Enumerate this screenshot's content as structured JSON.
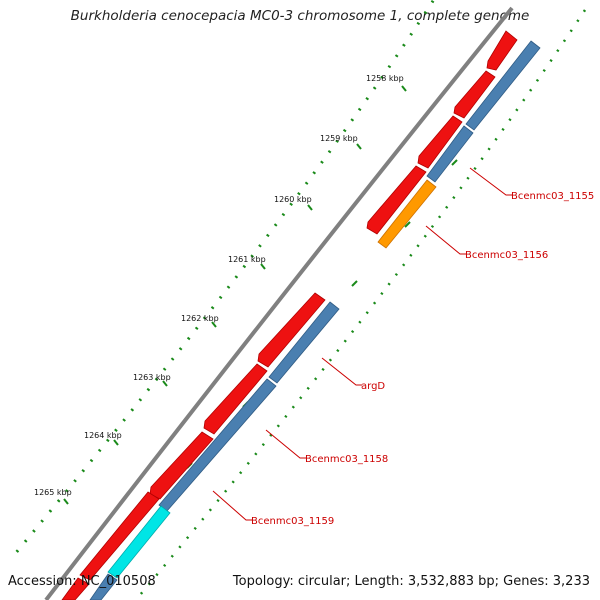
{
  "title": "Burkholderia cenocepacia MC0-3 chromosome 1, complete genome",
  "footer": {
    "accession": "Accession: NC_010508",
    "summary": "Topology: circular; Length: 3,532,883 bp; Genes: 3,233"
  },
  "scale": {
    "unit": "kbp",
    "ticks": [
      {
        "value": 1258,
        "label": "1258 kbp"
      },
      {
        "value": 1259,
        "label": "1259 kbp"
      },
      {
        "value": 1260,
        "label": "1260 kbp"
      },
      {
        "value": 1261,
        "label": "1261 kbp"
      },
      {
        "value": 1262,
        "label": "1262 kbp"
      },
      {
        "value": 1263,
        "label": "1263 kbp"
      },
      {
        "value": 1264,
        "label": "1264 kbp"
      },
      {
        "value": 1265,
        "label": "1265 kbp"
      }
    ]
  },
  "gene_labels": [
    {
      "name": "Bcenmc03_1155"
    },
    {
      "name": "Bcenmc03_1156"
    },
    {
      "name": "argD"
    },
    {
      "name": "Bcenmc03_1158"
    },
    {
      "name": "Bcenmc03_1159"
    }
  ],
  "colors": {
    "backbone": "#808080",
    "cds": "#ee1111",
    "feature_blue": "#4a7fb0",
    "feature_orange": "#ff9900",
    "feature_cyan": "#00e5e5",
    "gc_dots": "#1a8a1a",
    "label_red": "#cc0000"
  }
}
